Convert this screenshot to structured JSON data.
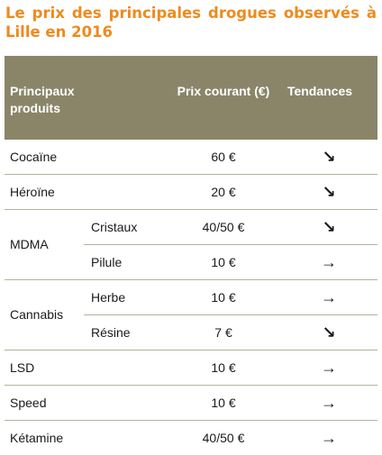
{
  "title": "Le prix des principales drogues observés à Lille en 2016",
  "header": {
    "produits": "Principaux produits",
    "prix": "Prix courant (€)",
    "tendances": "Tendances"
  },
  "rows": {
    "cocaine": {
      "name": "Cocaïne",
      "price": "60 €",
      "trend": "↘"
    },
    "heroine": {
      "name": "Héroïne",
      "price": "20 €",
      "trend": "↘"
    },
    "mdma": {
      "name": "MDMA",
      "sub1": {
        "name": "Cristaux",
        "price": "40/50 €",
        "trend": "↘"
      },
      "sub2": {
        "name": "Pilule",
        "price": "10 €",
        "trend": "→"
      }
    },
    "cannabis": {
      "name": "Cannabis",
      "sub1": {
        "name": "Herbe",
        "price": "10 €",
        "trend": "→"
      },
      "sub2": {
        "name": "Résine",
        "price": "7 €",
        "trend": "↘"
      }
    },
    "lsd": {
      "name": "LSD",
      "price": "10 €",
      "trend": "→"
    },
    "speed": {
      "name": "Speed",
      "price": "10 €",
      "trend": "→"
    },
    "ketamine": {
      "name": "Kétamine",
      "price": "40/50 €",
      "trend": "→"
    }
  }
}
